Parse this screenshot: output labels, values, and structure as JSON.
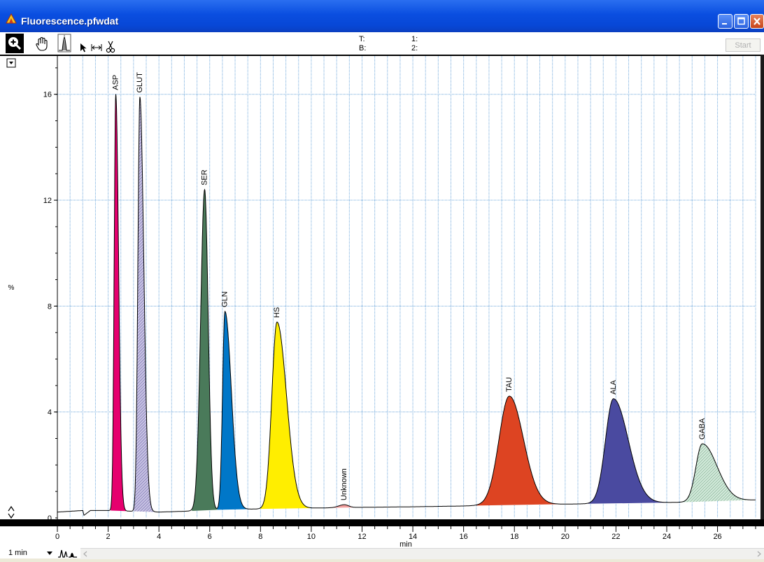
{
  "window": {
    "title": "Fluorescence.pfwdat"
  },
  "toolbar": {
    "readouts": {
      "t_label": "T:",
      "b_label": "B:",
      "ch1_label": "1:",
      "ch2_label": "2:"
    },
    "start_label": "Start"
  },
  "y_axis_unit_glyph": "%",
  "time_scale": {
    "selected": "1 min"
  },
  "chart_data": {
    "type": "line",
    "title": "",
    "xlabel": "min",
    "ylabel": "",
    "xlim": [
      0,
      27.5
    ],
    "ylim": [
      0,
      17.5
    ],
    "x_ticks": [
      0,
      2,
      4,
      6,
      8,
      10,
      12,
      14,
      16,
      18,
      20,
      22,
      24,
      26
    ],
    "y_ticks": [
      4,
      8,
      12,
      16
    ],
    "grid": true,
    "baseline": [
      [
        0,
        0.22
      ],
      [
        1,
        0.28
      ],
      [
        1.05,
        0.1
      ],
      [
        1.3,
        0.28
      ],
      [
        2,
        0.28
      ],
      [
        4,
        0.22
      ],
      [
        5,
        0.25
      ],
      [
        6,
        0.3
      ],
      [
        8,
        0.34
      ],
      [
        10,
        0.37
      ],
      [
        12,
        0.4
      ],
      [
        14,
        0.42
      ],
      [
        16,
        0.45
      ],
      [
        17,
        0.48
      ],
      [
        18,
        0.5
      ],
      [
        20,
        0.52
      ],
      [
        22,
        0.55
      ],
      [
        24,
        0.58
      ],
      [
        26,
        0.62
      ],
      [
        27.5,
        0.68
      ]
    ],
    "peaks": [
      {
        "name": "ASP",
        "rt": 2.3,
        "height": 16.0,
        "color": "#e6006e",
        "fill": "solid",
        "start": 2.1,
        "end": 2.7
      },
      {
        "name": "GLUT",
        "rt": 3.25,
        "height": 15.9,
        "color": "#9b93c9",
        "fill": "hatch",
        "start": 3.0,
        "end": 3.8
      },
      {
        "name": "SER",
        "rt": 5.8,
        "height": 12.4,
        "color": "#4a7a5a",
        "fill": "solid",
        "start": 5.3,
        "end": 6.3
      },
      {
        "name": "GLN",
        "rt": 6.6,
        "height": 7.8,
        "color": "#0077c8",
        "fill": "solid",
        "start": 6.3,
        "end": 7.5
      },
      {
        "name": "HS",
        "rt": 8.65,
        "height": 7.4,
        "color": "#ffee00",
        "fill": "solid",
        "start": 8.0,
        "end": 10.0
      },
      {
        "name": "Unknown",
        "rt": 11.3,
        "height": 0.5,
        "color": "#f2a0a0",
        "fill": "solid",
        "start": 10.6,
        "end": 11.9
      },
      {
        "name": "TAU",
        "rt": 17.8,
        "height": 4.6,
        "color": "#dd4422",
        "fill": "solid",
        "start": 16.5,
        "end": 19.8
      },
      {
        "name": "ALA",
        "rt": 21.9,
        "height": 4.5,
        "color": "#4a4aa0",
        "fill": "solid",
        "start": 20.9,
        "end": 24.0
      },
      {
        "name": "GABA",
        "rt": 25.4,
        "height": 2.8,
        "color": "#a8d4b8",
        "fill": "hatch",
        "start": 24.6,
        "end": 27.5
      }
    ]
  }
}
